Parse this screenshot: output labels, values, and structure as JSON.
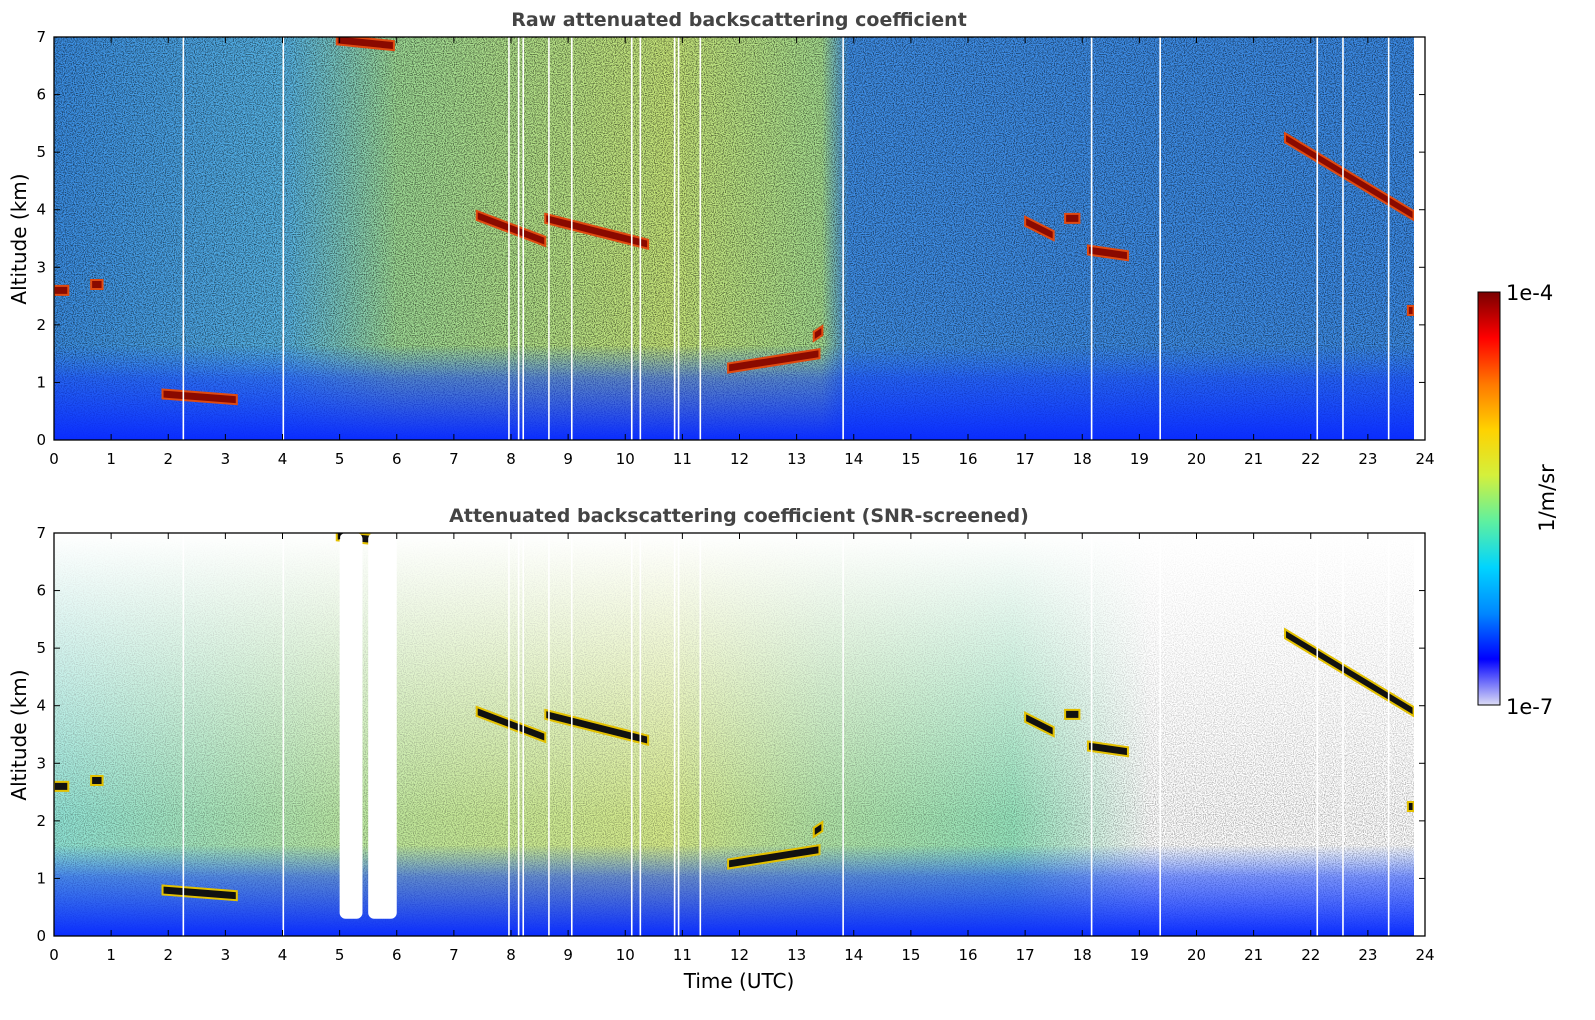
{
  "chart_data": [
    {
      "type": "heatmap",
      "title": "Raw attenuated backscattering coefficient",
      "xlabel": "",
      "ylabel": "Altitude (km)",
      "xlim": [
        0,
        24
      ],
      "ylim": [
        0,
        7
      ],
      "xticks": [
        "0",
        "1",
        "2",
        "3",
        "4",
        "5",
        "6",
        "7",
        "8",
        "9",
        "10",
        "11",
        "12",
        "13",
        "14",
        "15",
        "16",
        "17",
        "18",
        "19",
        "20",
        "21",
        "22",
        "23",
        "24"
      ],
      "yticks": [
        "0",
        "1",
        "2",
        "3",
        "4",
        "5",
        "6",
        "7"
      ],
      "background": "noisy, higher signal (green/yellow) ~4.5-13.5 UTC, lower (blue) elsewhere; strong near-surface signal below ~1 km",
      "cloud_layers": [
        {
          "t_start": 0.0,
          "t_end": 0.25,
          "alt_start": 2.6,
          "alt_end": 2.6
        },
        {
          "t_start": 0.65,
          "t_end": 0.85,
          "alt_start": 2.7,
          "alt_end": 2.7
        },
        {
          "t_start": 1.9,
          "t_end": 3.2,
          "alt_start": 0.8,
          "alt_end": 0.7
        },
        {
          "t_start": 4.95,
          "t_end": 5.95,
          "alt_start": 6.95,
          "alt_end": 6.85
        },
        {
          "t_start": 7.4,
          "t_end": 8.6,
          "alt_start": 3.9,
          "alt_end": 3.45
        },
        {
          "t_start": 8.6,
          "t_end": 10.4,
          "alt_start": 3.85,
          "alt_end": 3.4
        },
        {
          "t_start": 11.8,
          "t_end": 13.4,
          "alt_start": 1.25,
          "alt_end": 1.5
        },
        {
          "t_start": 13.3,
          "t_end": 13.45,
          "alt_start": 1.8,
          "alt_end": 1.9
        },
        {
          "t_start": 17.0,
          "t_end": 17.5,
          "alt_start": 3.8,
          "alt_end": 3.55
        },
        {
          "t_start": 17.7,
          "t_end": 17.95,
          "alt_start": 3.85,
          "alt_end": 3.85
        },
        {
          "t_start": 18.1,
          "t_end": 18.8,
          "alt_start": 3.3,
          "alt_end": 3.2
        },
        {
          "t_start": 21.55,
          "t_end": 23.8,
          "alt_start": 5.25,
          "alt_end": 3.9
        },
        {
          "t_start": 23.7,
          "t_end": 23.8,
          "alt_start": 2.25,
          "alt_end": 2.25
        }
      ]
    },
    {
      "type": "heatmap",
      "title": "Attenuated backscattering coefficient (SNR-screened)",
      "xlabel": "Time (UTC)",
      "ylabel": "Altitude (km)",
      "xlim": [
        0,
        24
      ],
      "ylim": [
        0,
        7
      ],
      "xticks": [
        "0",
        "1",
        "2",
        "3",
        "4",
        "5",
        "6",
        "7",
        "8",
        "9",
        "10",
        "11",
        "12",
        "13",
        "14",
        "15",
        "16",
        "17",
        "18",
        "19",
        "20",
        "21",
        "22",
        "23",
        "24"
      ],
      "yticks": [
        "0",
        "1",
        "2",
        "3",
        "4",
        "5",
        "6",
        "7"
      ],
      "screened_gaps": [
        {
          "t_start": 5.0,
          "t_end": 5.4,
          "alt_top": 7,
          "alt_bottom": 0.3
        },
        {
          "t_start": 5.5,
          "t_end": 6.0,
          "alt_top": 7,
          "alt_bottom": 0.3
        }
      ]
    }
  ],
  "colorbar": {
    "label": "1/m/sr",
    "max_label": "1e-4",
    "min_label": "1e-7",
    "scale": "log",
    "range": [
      1e-07,
      0.0001
    ],
    "colormap": [
      "#dcdcf5",
      "#0000ff",
      "#0087ff",
      "#00d4ff",
      "#5ef0a0",
      "#d4f03c",
      "#ffd200",
      "#ff7800",
      "#ff0000",
      "#7a0000"
    ]
  }
}
